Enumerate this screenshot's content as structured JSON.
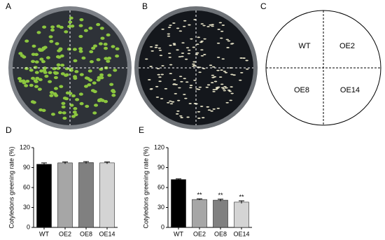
{
  "panel_labels": [
    "A",
    "B",
    "C"
  ],
  "diagram": {
    "quadrants": [
      "WT",
      "OE2",
      "OE8",
      "OE14"
    ]
  },
  "chart_data": [
    {
      "type": "bar",
      "panel_label": "D",
      "ylabel": "Cotyledons greening rate (%)",
      "categories": [
        "WT",
        "OE2",
        "OE8",
        "OE14"
      ],
      "values": [
        95,
        97,
        97.5,
        97
      ],
      "errors": [
        2,
        1.5,
        1.5,
        1.5
      ],
      "colors": [
        "#000000",
        "#a6a6a6",
        "#808080",
        "#d4d4d4"
      ],
      "ylim": [
        0,
        120
      ],
      "yticks": [
        0,
        30,
        60,
        90,
        120
      ]
    },
    {
      "type": "bar",
      "panel_label": "E",
      "ylabel": "Cotyledons greening rate (%)",
      "categories": [
        "WT",
        "OE2",
        "OE8",
        "OE14"
      ],
      "values": [
        72,
        42,
        41,
        38
      ],
      "errors": [
        1,
        1,
        1.5,
        2
      ],
      "value_annotations": [
        null,
        "**",
        "**",
        "**"
      ],
      "colors": [
        "#000000",
        "#a6a6a6",
        "#808080",
        "#d4d4d4"
      ],
      "ylim": [
        0,
        120
      ],
      "yticks": [
        0,
        30,
        60,
        90,
        120
      ]
    }
  ]
}
